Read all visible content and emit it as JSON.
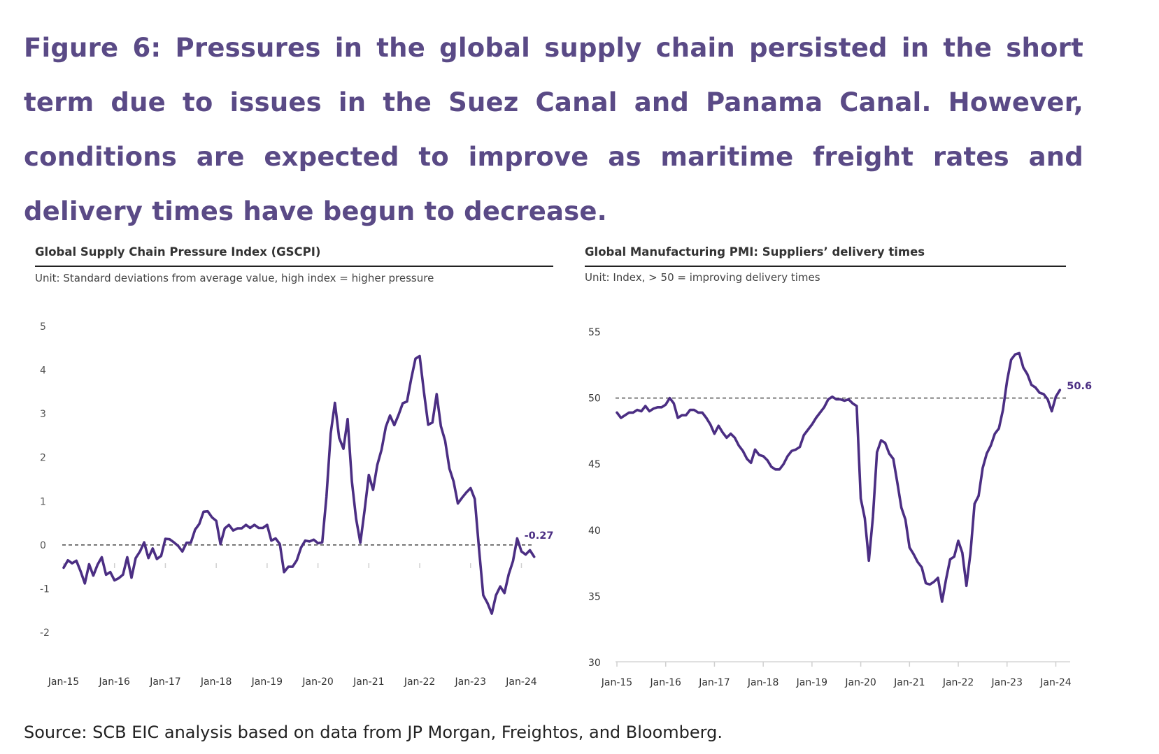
{
  "figure": {
    "title": "Figure 6: Pressures in the global supply chain persisted in the short term due to issues in the Suez Canal and Panama Canal. However, conditions are expected to improve as maritime freight rates and delivery times have begun to decrease.",
    "source": "Source: SCB EIC analysis based on data from JP Morgan, Freightos, and Bloomberg."
  },
  "colors": {
    "title": "#5a4a86",
    "line": "#4b2e83",
    "label": "#4b2e83"
  },
  "chart_data": [
    {
      "type": "line",
      "title": "Global Supply Chain Pressure Index (GSCPI)",
      "subtitle": "Unit: Standard deviations from average value, high index = higher pressure",
      "xlabel": "",
      "ylabel": "",
      "ylim": [
        -2,
        5
      ],
      "yticks": [
        "5",
        "4",
        "3",
        "2",
        "1",
        "0",
        "-1",
        "-2"
      ],
      "xticks": [
        "Jan-15",
        "Jan-16",
        "Jan-17",
        "Jan-18",
        "Jan-19",
        "Jan-20",
        "Jan-21",
        "Jan-22",
        "Jan-23",
        "Jan-24"
      ],
      "x_start": "Jan-15",
      "reference_line": 0,
      "grid": false,
      "end_label": "-0.27",
      "series": [
        {
          "name": "GSCPI",
          "values": [
            -0.52,
            -0.35,
            -0.42,
            -0.36,
            -0.6,
            -0.88,
            -0.44,
            -0.7,
            -0.45,
            -0.28,
            -0.68,
            -0.62,
            -0.81,
            -0.76,
            -0.68,
            -0.28,
            -0.75,
            -0.3,
            -0.15,
            0.06,
            -0.3,
            -0.08,
            -0.32,
            -0.25,
            0.14,
            0.13,
            0.06,
            -0.02,
            -0.15,
            0.05,
            0.05,
            0.35,
            0.48,
            0.76,
            0.77,
            0.63,
            0.55,
            0.02,
            0.38,
            0.46,
            0.33,
            0.38,
            0.38,
            0.46,
            0.39,
            0.46,
            0.39,
            0.39,
            0.46,
            0.1,
            0.15,
            0.02,
            -0.62,
            -0.5,
            -0.5,
            -0.35,
            -0.06,
            0.1,
            0.08,
            0.12,
            0.04,
            0.06,
            1.1,
            2.55,
            3.25,
            2.45,
            2.2,
            2.88,
            1.45,
            0.6,
            0.05,
            0.8,
            1.6,
            1.26,
            1.83,
            2.18,
            2.7,
            2.96,
            2.74,
            2.97,
            3.24,
            3.28,
            3.8,
            4.26,
            4.32,
            3.5,
            2.75,
            2.8,
            3.45,
            2.72,
            2.38,
            1.75,
            1.45,
            0.95,
            1.08,
            1.2,
            1.3,
            1.05,
            -0.1,
            -1.15,
            -1.33,
            -1.57,
            -1.15,
            -0.95,
            -1.1,
            -0.67,
            -0.37,
            0.15,
            -0.15,
            -0.22,
            -0.12,
            -0.27
          ]
        }
      ]
    },
    {
      "type": "line",
      "title": "Global Manufacturing PMI: Suppliers’ delivery times",
      "subtitle": "Unit: Index, > 50 = improving delivery times",
      "xlabel": "",
      "ylabel": "",
      "ylim": [
        30,
        55
      ],
      "yticks": [
        "55",
        "50",
        "45",
        "40",
        "35",
        "30"
      ],
      "xticks": [
        "Jan-15",
        "Jan-16",
        "Jan-17",
        "Jan-18",
        "Jan-19",
        "Jan-20",
        "Jan-21",
        "Jan-22",
        "Jan-23",
        "Jan-24"
      ],
      "x_start": "Jan-15",
      "reference_line": 50,
      "grid": false,
      "end_label": "50.6",
      "series": [
        {
          "name": "Suppliers' delivery times",
          "values": [
            48.9,
            48.5,
            48.7,
            48.9,
            48.9,
            49.1,
            49.0,
            49.4,
            49.0,
            49.2,
            49.3,
            49.3,
            49.5,
            50.0,
            49.6,
            48.5,
            48.7,
            48.7,
            49.1,
            49.1,
            48.9,
            48.9,
            48.5,
            48.0,
            47.3,
            47.9,
            47.4,
            47.0,
            47.3,
            47.0,
            46.4,
            46.0,
            45.4,
            45.1,
            46.1,
            45.7,
            45.6,
            45.3,
            44.8,
            44.6,
            44.6,
            45.0,
            45.6,
            46.0,
            46.1,
            46.3,
            47.2,
            47.6,
            48.0,
            48.5,
            48.9,
            49.3,
            49.9,
            50.1,
            49.9,
            49.9,
            49.8,
            49.9,
            49.6,
            49.4,
            42.4,
            40.9,
            37.7,
            41.0,
            45.9,
            46.8,
            46.6,
            45.8,
            45.4,
            43.6,
            41.7,
            40.8,
            38.7,
            38.2,
            37.6,
            37.2,
            36.0,
            35.9,
            36.1,
            36.4,
            34.6,
            36.3,
            37.8,
            38.0,
            39.2,
            38.3,
            35.8,
            38.3,
            42.0,
            42.6,
            44.7,
            45.8,
            46.4,
            47.3,
            47.7,
            49.1,
            51.3,
            52.9,
            53.3,
            53.4,
            52.3,
            51.8,
            51.0,
            50.8,
            50.4,
            50.3,
            49.9,
            49.0,
            50.1,
            50.6
          ]
        }
      ]
    }
  ]
}
